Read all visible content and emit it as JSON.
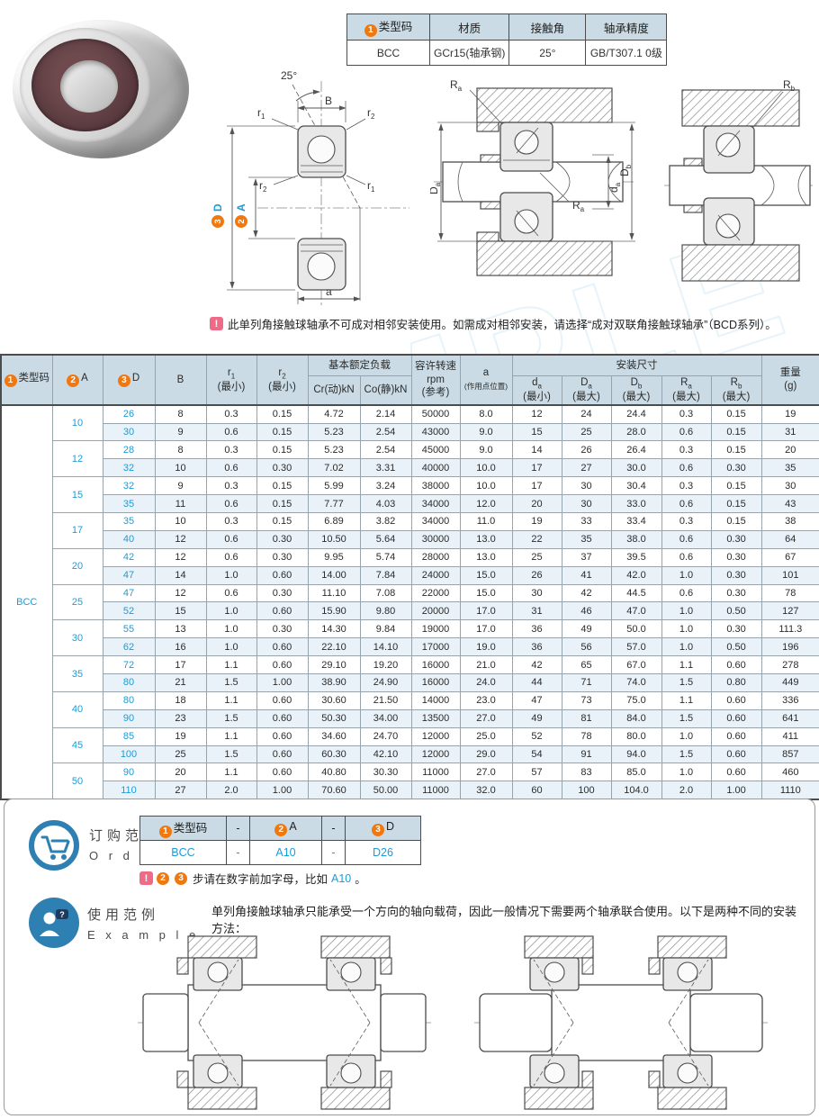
{
  "watermark": "SAMPLE",
  "colors": {
    "accent_blue": "#1b9cd8",
    "header_bg": "#cadbe5",
    "row_alt_bg": "#e9f2f8",
    "badge_orange": "#f0780f",
    "note_pink": "#ef6a87",
    "icon_blue": "#2e80b2"
  },
  "spec_table": {
    "col1_badge": "1",
    "col1_label": "类型码",
    "col2": "材质",
    "col3": "接触角",
    "col4": "轴承精度",
    "val1": "BCC",
    "val2": "GCr15(轴承钢)",
    "val3": "25°",
    "val4": "GB/T307.1 0级"
  },
  "note": {
    "icon_glyph": "!",
    "text": "此单列角接触球轴承不可成对相邻安装使用。如需成对相邻安装，请选择“成对双联角接触球轴承”（BCD系列）。"
  },
  "diagrams": {
    "angle": "25°",
    "b_label": "B",
    "r_base": "r",
    "r1_sub": "1",
    "r2_sub": "2",
    "d_badge": "3",
    "d_label": "D",
    "a_badge": "2",
    "a_label": "A",
    "a_dim": "a",
    "R_base": "R",
    "d_base": "d",
    "D_base": "D",
    "sub_a": "a",
    "sub_b": "b"
  },
  "main_table": {
    "type_code": "BCC",
    "columns": [
      "类型码",
      "A",
      "D",
      "B",
      "r1(最小)",
      "r2(最小)",
      "Cr(动)kN",
      "Co(静)kN",
      "容许转速rpm(参考)",
      "a(作用点位置)",
      "da(最小)",
      "Da(最大)",
      "Db(最大)",
      "Ra(最大)",
      "Rb(最大)",
      "重量(g)"
    ],
    "header": {
      "c1_badge": "1",
      "c1": "类型码",
      "c2_badge": "2",
      "c2": "A",
      "c3_badge": "3",
      "c3": "D",
      "c4": "B",
      "r_base": "r",
      "r1_sub": "1",
      "r2_sub": "2",
      "min": "(最小)",
      "max": "(最大)",
      "load_group": "基本额定负载",
      "cr": "Cr(动)kN",
      "co": "Co(静)kN",
      "speed1": "容许转速",
      "speed2": "rpm",
      "speed3": "(参考)",
      "a_base": "a",
      "a_note": "(作用点位置)",
      "mount_group": "安装尺寸",
      "d_base": "d",
      "D_base": "D",
      "R_base": "R",
      "sub_a": "a",
      "sub_b": "b",
      "weight1": "重量",
      "weight2": "(g)"
    },
    "groups": [
      {
        "a": "10",
        "rows": [
          [
            "26",
            "8",
            "0.3",
            "0.15",
            "4.72",
            "2.14",
            "50000",
            "8.0",
            "12",
            "24",
            "24.4",
            "0.3",
            "0.15",
            "19"
          ],
          [
            "30",
            "9",
            "0.6",
            "0.15",
            "5.23",
            "2.54",
            "43000",
            "9.0",
            "15",
            "25",
            "28.0",
            "0.6",
            "0.15",
            "31"
          ]
        ]
      },
      {
        "a": "12",
        "rows": [
          [
            "28",
            "8",
            "0.3",
            "0.15",
            "5.23",
            "2.54",
            "45000",
            "9.0",
            "14",
            "26",
            "26.4",
            "0.3",
            "0.15",
            "20"
          ],
          [
            "32",
            "10",
            "0.6",
            "0.30",
            "7.02",
            "3.31",
            "40000",
            "10.0",
            "17",
            "27",
            "30.0",
            "0.6",
            "0.30",
            "35"
          ]
        ]
      },
      {
        "a": "15",
        "rows": [
          [
            "32",
            "9",
            "0.3",
            "0.15",
            "5.99",
            "3.24",
            "38000",
            "10.0",
            "17",
            "30",
            "30.4",
            "0.3",
            "0.15",
            "30"
          ],
          [
            "35",
            "11",
            "0.6",
            "0.15",
            "7.77",
            "4.03",
            "34000",
            "12.0",
            "20",
            "30",
            "33.0",
            "0.6",
            "0.15",
            "43"
          ]
        ]
      },
      {
        "a": "17",
        "rows": [
          [
            "35",
            "10",
            "0.3",
            "0.15",
            "6.89",
            "3.82",
            "34000",
            "11.0",
            "19",
            "33",
            "33.4",
            "0.3",
            "0.15",
            "38"
          ],
          [
            "40",
            "12",
            "0.6",
            "0.30",
            "10.50",
            "5.64",
            "30000",
            "13.0",
            "22",
            "35",
            "38.0",
            "0.6",
            "0.30",
            "64"
          ]
        ]
      },
      {
        "a": "20",
        "rows": [
          [
            "42",
            "12",
            "0.6",
            "0.30",
            "9.95",
            "5.74",
            "28000",
            "13.0",
            "25",
            "37",
            "39.5",
            "0.6",
            "0.30",
            "67"
          ],
          [
            "47",
            "14",
            "1.0",
            "0.60",
            "14.00",
            "7.84",
            "24000",
            "15.0",
            "26",
            "41",
            "42.0",
            "1.0",
            "0.30",
            "101"
          ]
        ]
      },
      {
        "a": "25",
        "rows": [
          [
            "47",
            "12",
            "0.6",
            "0.30",
            "11.10",
            "7.08",
            "22000",
            "15.0",
            "30",
            "42",
            "44.5",
            "0.6",
            "0.30",
            "78"
          ],
          [
            "52",
            "15",
            "1.0",
            "0.60",
            "15.90",
            "9.80",
            "20000",
            "17.0",
            "31",
            "46",
            "47.0",
            "1.0",
            "0.50",
            "127"
          ]
        ]
      },
      {
        "a": "30",
        "rows": [
          [
            "55",
            "13",
            "1.0",
            "0.30",
            "14.30",
            "9.84",
            "19000",
            "17.0",
            "36",
            "49",
            "50.0",
            "1.0",
            "0.30",
            "111.3"
          ],
          [
            "62",
            "16",
            "1.0",
            "0.60",
            "22.10",
            "14.10",
            "17000",
            "19.0",
            "36",
            "56",
            "57.0",
            "1.0",
            "0.50",
            "196"
          ]
        ]
      },
      {
        "a": "35",
        "rows": [
          [
            "72",
            "17",
            "1.1",
            "0.60",
            "29.10",
            "19.20",
            "16000",
            "21.0",
            "42",
            "65",
            "67.0",
            "1.1",
            "0.60",
            "278"
          ],
          [
            "80",
            "21",
            "1.5",
            "1.00",
            "38.90",
            "24.90",
            "16000",
            "24.0",
            "44",
            "71",
            "74.0",
            "1.5",
            "0.80",
            "449"
          ]
        ]
      },
      {
        "a": "40",
        "rows": [
          [
            "80",
            "18",
            "1.1",
            "0.60",
            "30.60",
            "21.50",
            "14000",
            "23.0",
            "47",
            "73",
            "75.0",
            "1.1",
            "0.60",
            "336"
          ],
          [
            "90",
            "23",
            "1.5",
            "0.60",
            "50.30",
            "34.00",
            "13500",
            "27.0",
            "49",
            "81",
            "84.0",
            "1.5",
            "0.60",
            "641"
          ]
        ]
      },
      {
        "a": "45",
        "rows": [
          [
            "85",
            "19",
            "1.1",
            "0.60",
            "34.60",
            "24.70",
            "12000",
            "25.0",
            "52",
            "78",
            "80.0",
            "1.0",
            "0.60",
            "411"
          ],
          [
            "100",
            "25",
            "1.5",
            "0.60",
            "60.30",
            "42.10",
            "12000",
            "29.0",
            "54",
            "91",
            "94.0",
            "1.5",
            "0.60",
            "857"
          ]
        ]
      },
      {
        "a": "50",
        "rows": [
          [
            "90",
            "20",
            "1.1",
            "0.60",
            "40.80",
            "30.30",
            "11000",
            "27.0",
            "57",
            "83",
            "85.0",
            "1.0",
            "0.60",
            "460"
          ],
          [
            "110",
            "27",
            "2.0",
            "1.00",
            "70.60",
            "50.00",
            "11000",
            "32.0",
            "60",
            "100",
            "104.0",
            "2.0",
            "1.00",
            "1110"
          ]
        ]
      }
    ]
  },
  "order": {
    "title_cn": "订购范例",
    "title_en": "O r d e r",
    "table": {
      "h1_badge": "1",
      "h1": "类型码",
      "h2_badge": "2",
      "h2": "A",
      "h3_badge": "3",
      "h3": "D",
      "dash": "-",
      "v1": "BCC",
      "v2": "A10",
      "v3": "D26",
      "vdash": "-"
    },
    "note_icon": "!",
    "note_badge2": "2",
    "note_badge3": "3",
    "note_pre": "步请在数字前加字母，比如",
    "note_code": "A10",
    "note_post": "。"
  },
  "example": {
    "title_cn": "使用范例",
    "title_en": "E x a m p l e",
    "text": "单列角接触球轴承只能承受一个方向的轴向载荷，因此一般情况下需要两个轴承联合使用。以下是两种不同的安装方法："
  }
}
